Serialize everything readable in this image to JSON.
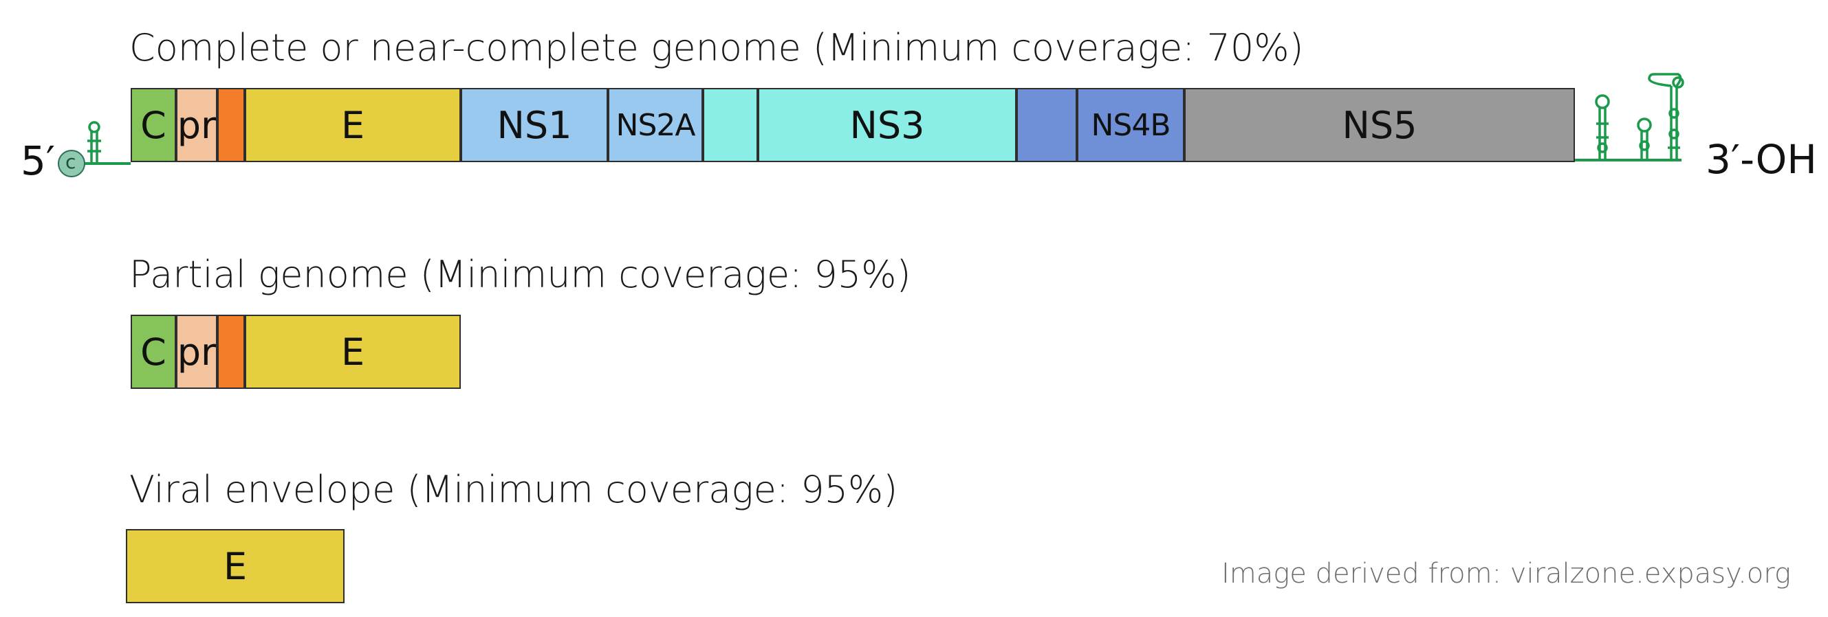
{
  "sections": [
    {
      "heading": "Complete or near-complete genome (Minimum coverage: 70%)"
    },
    {
      "heading": "Partial genome (Minimum coverage: 95%)"
    },
    {
      "heading": "Viral envelope (Minimum coverage: 95%)"
    }
  ],
  "genome": {
    "five_prime_label": "5′",
    "cap_label": "c",
    "three_prime_label": "3′-OH",
    "segments": [
      {
        "label": "C",
        "color": "#86c35a"
      },
      {
        "label": "pr",
        "color": "#f3c39e"
      },
      {
        "label": "",
        "color": "#f47d2a"
      },
      {
        "label": "E",
        "color": "#e5cf41"
      },
      {
        "label": "NS1",
        "color": "#9ac9f0"
      },
      {
        "label": "NS2A",
        "color": "#9ac9f0"
      },
      {
        "label": "",
        "color": "#8aeee6"
      },
      {
        "label": "NS3",
        "color": "#8aeee6"
      },
      {
        "label": "",
        "color": "#6f8fd6"
      },
      {
        "label": "NS4B",
        "color": "#6f8fd6"
      },
      {
        "label": "NS5",
        "color": "#999999"
      }
    ]
  },
  "partial": {
    "segments": [
      {
        "label": "C",
        "color": "#86c35a"
      },
      {
        "label": "pr",
        "color": "#f3c39e"
      },
      {
        "label": "",
        "color": "#f47d2a"
      },
      {
        "label": "E",
        "color": "#e5cf41"
      }
    ]
  },
  "envelope": {
    "segments": [
      {
        "label": "E",
        "color": "#e5cf41"
      }
    ]
  },
  "colors": {
    "rna_line": "#1a9a4a",
    "cap_fill": "#8ec9b0"
  },
  "credit": "Image derived from: viralzone.expasy.org"
}
